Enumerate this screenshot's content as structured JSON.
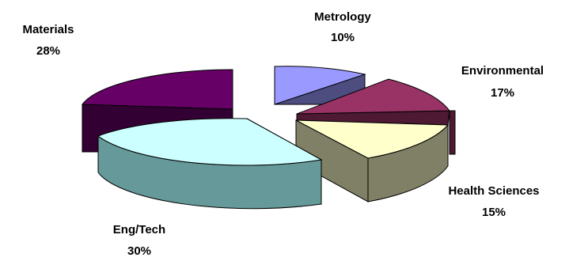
{
  "chart_data": {
    "type": "pie",
    "title": "",
    "legend": "none",
    "slices": [
      {
        "label": "Metrology",
        "value": 10,
        "value_label": "10%",
        "color": "#9999ff"
      },
      {
        "label": "Environmental",
        "value": 17,
        "value_label": "17%",
        "color": "#993366"
      },
      {
        "label": "Health Sciences",
        "value": 15,
        "value_label": "15%",
        "color": "#ffffcc"
      },
      {
        "label": "Eng/Tech",
        "value": 30,
        "value_label": "30%",
        "color": "#ccffff"
      },
      {
        "label": "Materials",
        "value": 28,
        "value_label": "28%",
        "color": "#660066"
      }
    ]
  }
}
